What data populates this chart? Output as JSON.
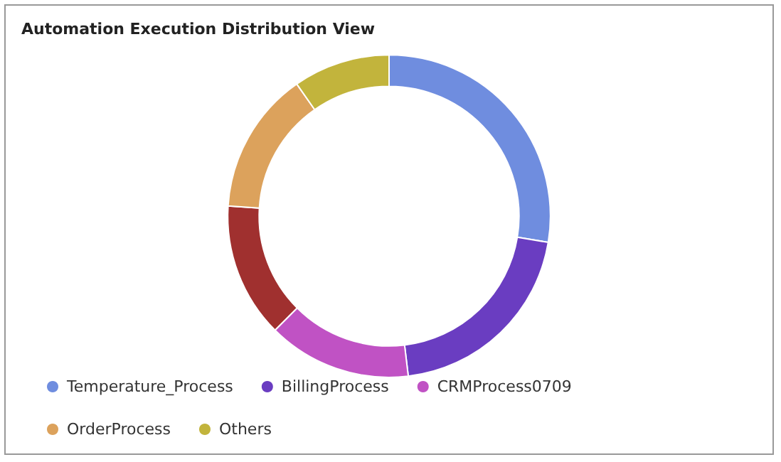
{
  "chart_data": {
    "type": "donut",
    "title": "Automation Execution Distribution View",
    "categories": [
      "Temperature_Process",
      "BillingProcess",
      "CRMProcess0709",
      null,
      "OrderProcess",
      "Others"
    ],
    "values": [
      27.6,
      20.5,
      14.4,
      13.5,
      14.3,
      9.7
    ],
    "colors": [
      "#6f8ddf",
      "#6a3dc1",
      "#c052c4",
      "#a0302f",
      "#dca25c",
      "#c2b43c"
    ],
    "legend": "bottom left"
  }
}
